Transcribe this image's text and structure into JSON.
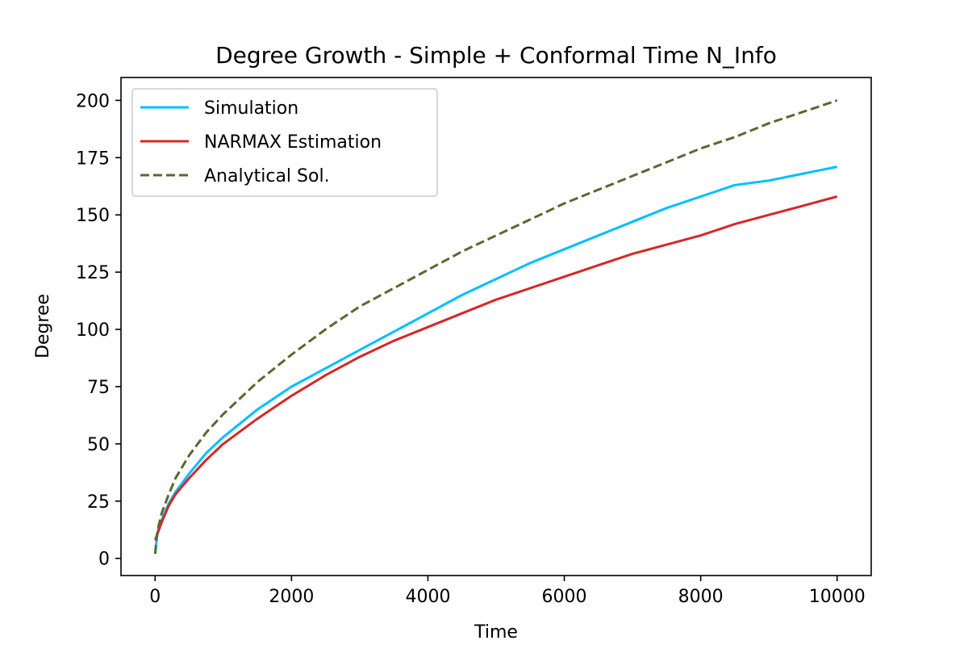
{
  "chart_data": {
    "type": "line",
    "title": "Degree Growth - Simple + Conformal Time N_Info",
    "xlabel": "Time",
    "ylabel": "Degree",
    "xlim": [
      -500,
      10500
    ],
    "ylim": [
      -7.5,
      210
    ],
    "x_ticks": [
      0,
      2000,
      4000,
      6000,
      8000,
      10000
    ],
    "y_ticks": [
      0,
      25,
      50,
      75,
      100,
      125,
      150,
      175,
      200
    ],
    "x_tick_labels": [
      "0",
      "2000",
      "4000",
      "6000",
      "8000",
      "10000"
    ],
    "y_tick_labels": [
      "0",
      "25",
      "50",
      "75",
      "100",
      "125",
      "150",
      "175",
      "200"
    ],
    "grid": false,
    "legend_position": "upper-left",
    "series": [
      {
        "name": "Simulation",
        "color": "#00bfff",
        "style": "solid",
        "x": [
          1,
          25,
          50,
          100,
          200,
          300,
          500,
          750,
          1000,
          1500,
          2000,
          2500,
          3000,
          3500,
          4000,
          4500,
          5000,
          5500,
          6000,
          6500,
          7000,
          7500,
          8000,
          8500,
          9000,
          9500,
          10000
        ],
        "y": [
          2,
          9,
          13,
          17,
          24,
          29,
          37,
          46,
          53,
          65,
          75,
          83,
          91,
          99,
          107,
          115,
          122,
          129,
          135,
          141,
          147,
          153,
          158,
          163,
          165,
          168,
          171
        ]
      },
      {
        "name": "NARMAX Estimation",
        "color": "#d62728",
        "style": "solid",
        "x": [
          1,
          25,
          50,
          100,
          200,
          300,
          500,
          750,
          1000,
          1500,
          2000,
          2500,
          3000,
          3500,
          4000,
          4500,
          5000,
          5500,
          6000,
          6500,
          7000,
          7500,
          8000,
          8500,
          9000,
          9500,
          10000
        ],
        "y": [
          8,
          10,
          12,
          16,
          23,
          28,
          35,
          43,
          50,
          61,
          71,
          80,
          88,
          95,
          101,
          107,
          113,
          118,
          123,
          128,
          133,
          137,
          141,
          146,
          150,
          154,
          158
        ]
      },
      {
        "name": "Analytical Sol.",
        "color": "#556b2f",
        "style": "dashed",
        "x": [
          1,
          25,
          50,
          100,
          200,
          300,
          500,
          750,
          1000,
          1500,
          2000,
          2500,
          3000,
          3500,
          4000,
          4500,
          5000,
          5500,
          6000,
          6500,
          7000,
          7500,
          8000,
          8500,
          9000,
          9500,
          10000
        ],
        "y": [
          2,
          10,
          14,
          20,
          28,
          35,
          45,
          55,
          63,
          77,
          89,
          100,
          110,
          118,
          126,
          134,
          141,
          148,
          155,
          161,
          167,
          173,
          179,
          184,
          190,
          195,
          200
        ]
      }
    ]
  }
}
